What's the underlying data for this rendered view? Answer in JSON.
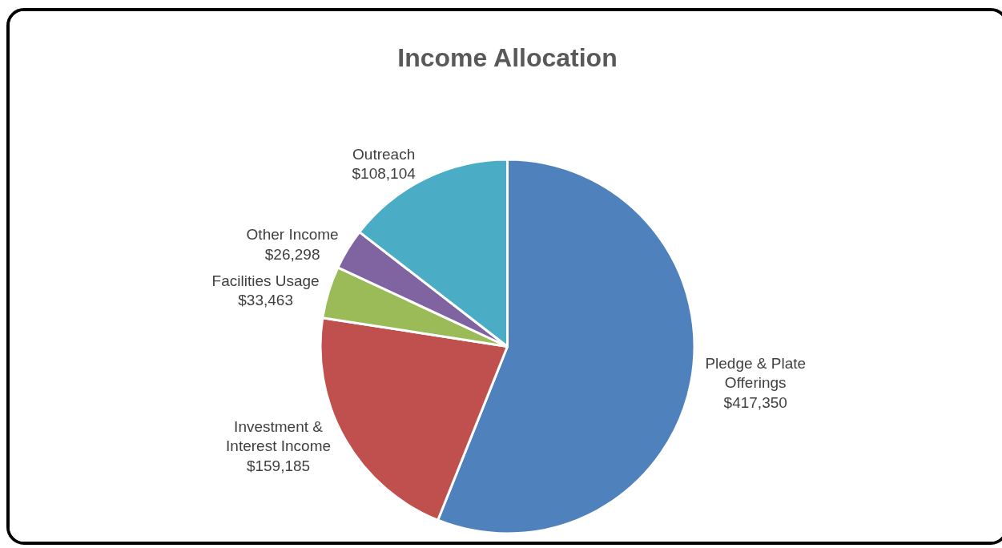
{
  "chart_data": {
    "type": "pie",
    "title": "Income Allocation",
    "categories": [
      "Pledge & Plate Offerings",
      "Investment & Interest Income",
      "Facilities Usage",
      "Other Income",
      "Outreach"
    ],
    "values": [
      417350,
      159185,
      33463,
      26298,
      108104
    ],
    "value_labels": [
      "$417,350",
      "$159,185",
      "$33,463",
      "$26,298",
      "$108,104"
    ],
    "colors": [
      "#4f81bd",
      "#c0504d",
      "#9bbb59",
      "#8064a2",
      "#4bacc6"
    ],
    "legend": false
  }
}
